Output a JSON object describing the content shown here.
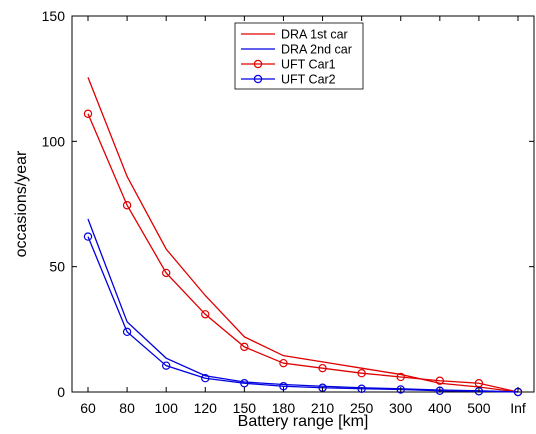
{
  "chart_data": {
    "type": "line",
    "xlabel": "Battery range [km]",
    "ylabel": "occasions/year",
    "categories": [
      "60",
      "80",
      "100",
      "120",
      "150",
      "180",
      "210",
      "250",
      "300",
      "400",
      "500",
      "Inf"
    ],
    "ylim": [
      0,
      150
    ],
    "yticks": [
      0,
      50,
      100,
      150
    ],
    "grid": false,
    "legend_position": "top-center",
    "series": [
      {
        "name": "DRA 1st car",
        "color": "#e00000",
        "marker": "none",
        "values": [
          125.5,
          86,
          57,
          38.5,
          22,
          14.5,
          12,
          9.5,
          7,
          3.5,
          2,
          0
        ]
      },
      {
        "name": "DRA 2nd car",
        "color": "#0000e0",
        "marker": "none",
        "values": [
          69,
          28,
          13.5,
          6.5,
          4,
          3,
          2.3,
          1.7,
          1.3,
          0.8,
          0.5,
          0
        ]
      },
      {
        "name": "UFT Car1",
        "color": "#e00000",
        "marker": "circle",
        "values": [
          111,
          74.5,
          47.5,
          31,
          18,
          11.5,
          9.5,
          7.5,
          6,
          4.5,
          3.5,
          0
        ]
      },
      {
        "name": "UFT Car2",
        "color": "#0000e0",
        "marker": "circle",
        "values": [
          62,
          24,
          10.5,
          5.5,
          3.5,
          2.3,
          1.7,
          1.3,
          1,
          0.5,
          0.3,
          0
        ]
      }
    ]
  }
}
